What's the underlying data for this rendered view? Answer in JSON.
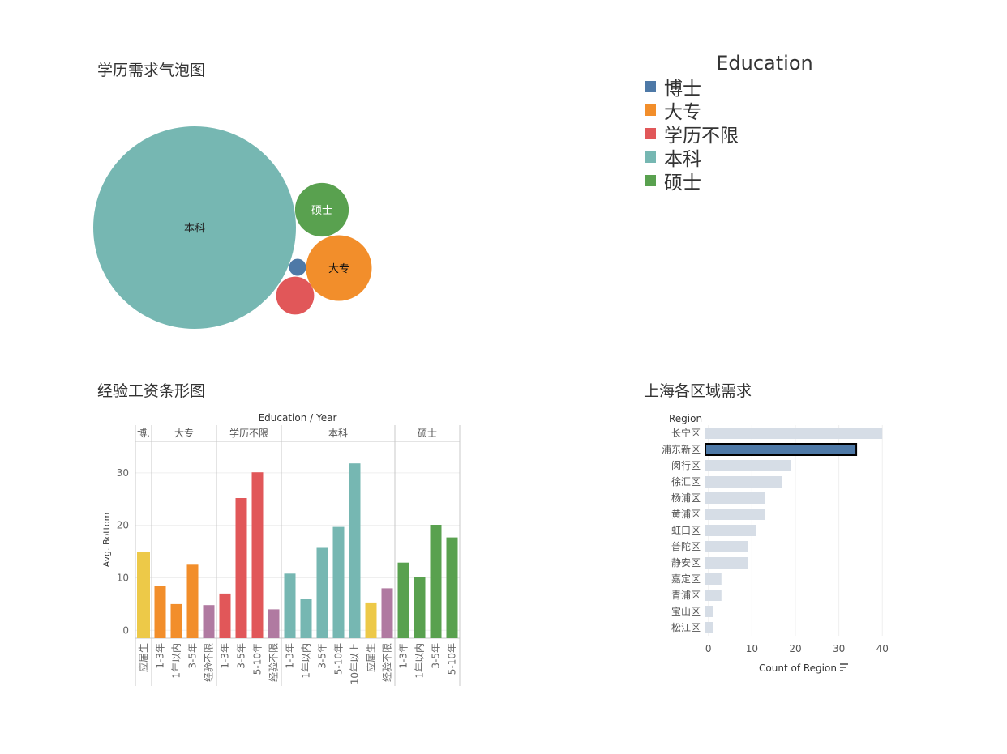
{
  "bubble_title": "学历需求气泡图",
  "bar_title": "经验工资条形图",
  "region_title": "上海各区域需求",
  "colors": {
    "博士": "#4e79a7",
    "大专": "#f28e2b",
    "学历不限": "#e15759",
    "本科": "#76b7b2",
    "硕士": "#59a14f",
    "应届生": "#edc948",
    "经验不限": "#b07aa1",
    "region_bar": "#d6dde6",
    "region_highlight": "#4e79a7"
  },
  "legend": {
    "title": "Education",
    "items": [
      {
        "label": "博士",
        "color": "#4e79a7"
      },
      {
        "label": "大专",
        "color": "#f28e2b"
      },
      {
        "label": "学历不限",
        "color": "#e15759"
      },
      {
        "label": "本科",
        "color": "#76b7b2"
      },
      {
        "label": "硕士",
        "color": "#59a14f"
      }
    ]
  },
  "chart_data": [
    {
      "type": "bubble",
      "title": "学历需求气泡图",
      "items": [
        {
          "label": "本科",
          "value": 100,
          "show_label": true
        },
        {
          "label": "硕士",
          "value": 7,
          "show_label": true
        },
        {
          "label": "大专",
          "value": 10.5,
          "show_label": true
        },
        {
          "label": "博士",
          "value": 0.7,
          "show_label": false
        },
        {
          "label": "学历不限",
          "value": 3.5,
          "show_label": false
        }
      ]
    },
    {
      "type": "bar",
      "title": "经验工资条形图",
      "header": "Education / Year",
      "ylabel": "Avg. Bottom",
      "ylim": [
        -1.5,
        36
      ],
      "yticks": [
        0,
        10,
        20,
        30
      ],
      "groups": [
        {
          "education": "博士",
          "header": "博.",
          "bars": [
            {
              "year": "应届生",
              "value": 15.0
            }
          ]
        },
        {
          "education": "大专",
          "header": "大专",
          "bars": [
            {
              "year": "1-3年",
              "value": 8.5
            },
            {
              "year": "1年以内",
              "value": 5.0
            },
            {
              "year": "3-5年",
              "value": 12.5
            },
            {
              "year": "经验不限",
              "value": 4.8
            }
          ]
        },
        {
          "education": "学历不限",
          "header": "学历不限",
          "bars": [
            {
              "year": "1-3年",
              "value": 7.0
            },
            {
              "year": "3-5年",
              "value": 25.2
            },
            {
              "year": "5-10年",
              "value": 30.1
            },
            {
              "year": "经验不限",
              "value": 4.0
            }
          ]
        },
        {
          "education": "本科",
          "header": "本科",
          "bars": [
            {
              "year": "1-3年",
              "value": 10.8
            },
            {
              "year": "1年以内",
              "value": 5.9
            },
            {
              "year": "3-5年",
              "value": 15.7
            },
            {
              "year": "5-10年",
              "value": 19.7
            },
            {
              "year": "10年以上",
              "value": 31.8
            },
            {
              "year": "应届生",
              "value": 5.3
            },
            {
              "year": "经验不限",
              "value": 8.0
            }
          ]
        },
        {
          "education": "硕士",
          "header": "硕士",
          "bars": [
            {
              "year": "1-3年",
              "value": 12.9
            },
            {
              "year": "1年以内",
              "value": 10.1
            },
            {
              "year": "3-5年",
              "value": 20.1
            },
            {
              "year": "5-10年",
              "value": 17.7
            }
          ]
        }
      ]
    },
    {
      "type": "bar",
      "orientation": "horizontal",
      "title": "上海各区域需求",
      "ylabel": "Region",
      "xlabel": "Count of Region",
      "xlim": [
        -0.7,
        40.7
      ],
      "xticks": [
        0,
        10,
        20,
        30,
        40
      ],
      "highlighted": "浦东新区",
      "categories": [
        "长宁区",
        "浦东新区",
        "闵行区",
        "徐汇区",
        "杨浦区",
        "黄浦区",
        "虹口区",
        "普陀区",
        "静安区",
        "嘉定区",
        "青浦区",
        "宝山区",
        "松江区"
      ],
      "values": [
        40,
        34,
        19,
        17,
        13,
        13,
        11,
        9,
        9,
        3,
        3,
        1,
        1
      ]
    }
  ]
}
